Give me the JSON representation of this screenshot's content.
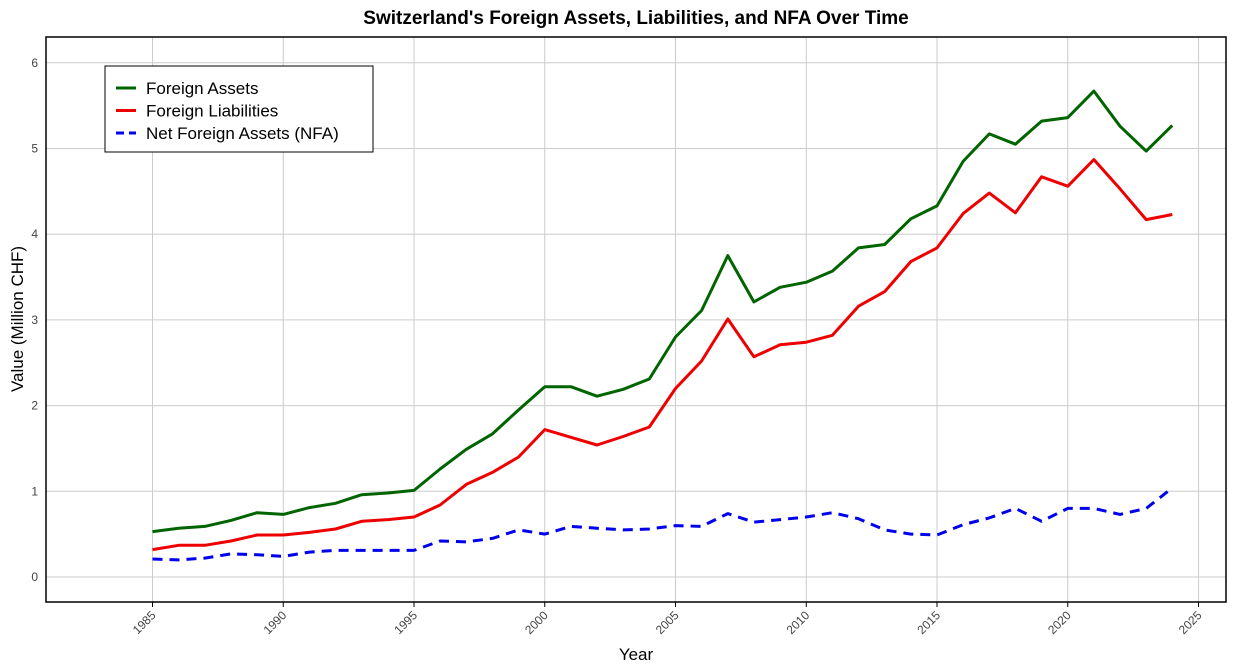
{
  "chart_data": {
    "type": "line",
    "title": "Switzerland's Foreign Assets, Liabilities, and NFA Over Time",
    "xlabel": "Year",
    "ylabel": "Value (Million CHF)",
    "xlim": [
      1985,
      2025
    ],
    "ylim": [
      0,
      6
    ],
    "x_ticks": [
      "1985",
      "1990",
      "1995",
      "2000",
      "2005",
      "2010",
      "2015",
      "2020",
      "2025"
    ],
    "y_ticks": [
      "0",
      "1",
      "2",
      "3",
      "4",
      "5",
      "6"
    ],
    "grid": true,
    "legend_position": "top-left",
    "x": [
      1985,
      1986,
      1987,
      1988,
      1989,
      1990,
      1991,
      1992,
      1993,
      1994,
      1995,
      1996,
      1997,
      1998,
      1999,
      2000,
      2001,
      2002,
      2003,
      2004,
      2005,
      2006,
      2007,
      2008,
      2009,
      2010,
      2011,
      2012,
      2013,
      2014,
      2015,
      2016,
      2017,
      2018,
      2019,
      2020,
      2021,
      2022,
      2023,
      2024
    ],
    "series": [
      {
        "name": "Foreign Assets",
        "color": "#006400",
        "style": "solid",
        "values": [
          0.53,
          0.57,
          0.59,
          0.66,
          0.75,
          0.73,
          0.81,
          0.86,
          0.96,
          0.98,
          1.01,
          1.26,
          1.49,
          1.67,
          1.95,
          2.22,
          2.22,
          2.11,
          2.19,
          2.31,
          2.8,
          3.11,
          3.75,
          3.21,
          3.38,
          3.44,
          3.57,
          3.84,
          3.88,
          4.18,
          4.33,
          4.85,
          5.17,
          5.05,
          5.32,
          5.36,
          5.67,
          5.26,
          4.97,
          5.27
        ]
      },
      {
        "name": "Foreign Liabilities",
        "color": "#ee0000",
        "style": "solid",
        "values": [
          0.32,
          0.37,
          0.37,
          0.42,
          0.49,
          0.49,
          0.52,
          0.56,
          0.65,
          0.67,
          0.7,
          0.84,
          1.08,
          1.22,
          1.4,
          1.72,
          1.63,
          1.54,
          1.64,
          1.75,
          2.2,
          2.52,
          3.01,
          2.57,
          2.71,
          2.74,
          2.82,
          3.16,
          3.33,
          3.68,
          3.84,
          4.24,
          4.48,
          4.25,
          4.67,
          4.56,
          4.87,
          4.53,
          4.17,
          4.23
        ]
      },
      {
        "name": "Net Foreign Assets (NFA)",
        "color": "#0000ee",
        "style": "dashed",
        "values": [
          0.21,
          0.2,
          0.22,
          0.27,
          0.26,
          0.24,
          0.29,
          0.31,
          0.31,
          0.31,
          0.31,
          0.42,
          0.41,
          0.45,
          0.55,
          0.5,
          0.59,
          0.57,
          0.55,
          0.56,
          0.6,
          0.59,
          0.74,
          0.64,
          0.67,
          0.7,
          0.75,
          0.68,
          0.55,
          0.5,
          0.49,
          0.61,
          0.69,
          0.8,
          0.65,
          0.8,
          0.8,
          0.73,
          0.8,
          1.04
        ]
      }
    ]
  }
}
